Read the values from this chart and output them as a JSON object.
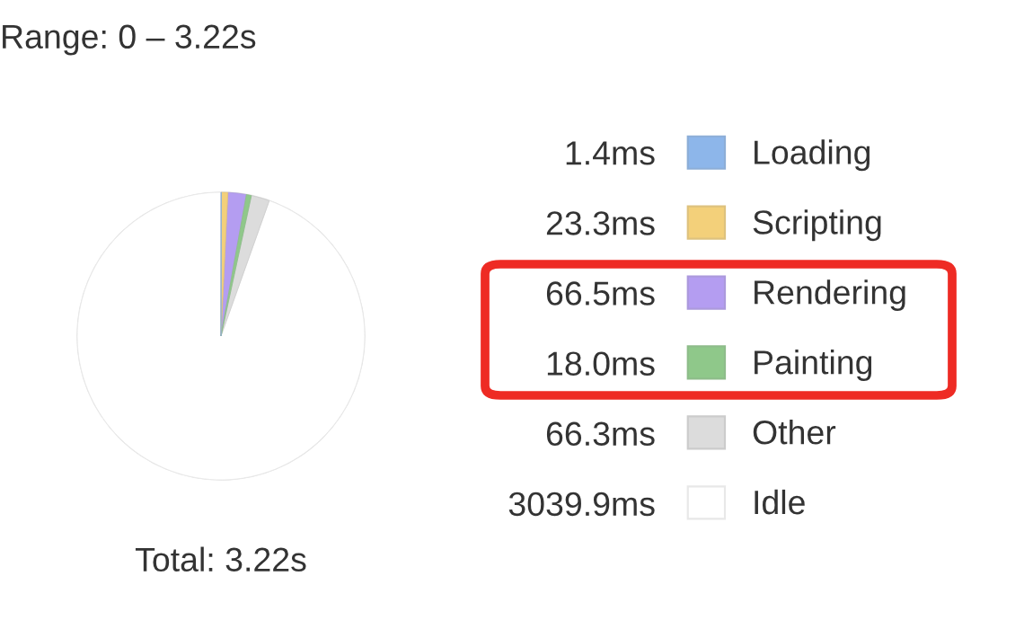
{
  "chart_data": {
    "type": "pie",
    "title": "Range: 0 – 3.22s",
    "categories": [
      "Loading",
      "Scripting",
      "Rendering",
      "Painting",
      "Other",
      "Idle"
    ],
    "values": [
      1.4,
      23.3,
      66.5,
      18.0,
      66.3,
      3039.9
    ],
    "value_labels": [
      "1.4ms",
      "23.3ms",
      "66.5ms",
      "18.0ms",
      "66.3ms",
      "3039.9ms"
    ],
    "colors": [
      "#8db6ea",
      "#f3d07a",
      "#b49df1",
      "#8fc88a",
      "#dcdcdc",
      "#ffffff"
    ],
    "legend": "right",
    "annotations": [
      "Total: 3.22s"
    ]
  }
}
